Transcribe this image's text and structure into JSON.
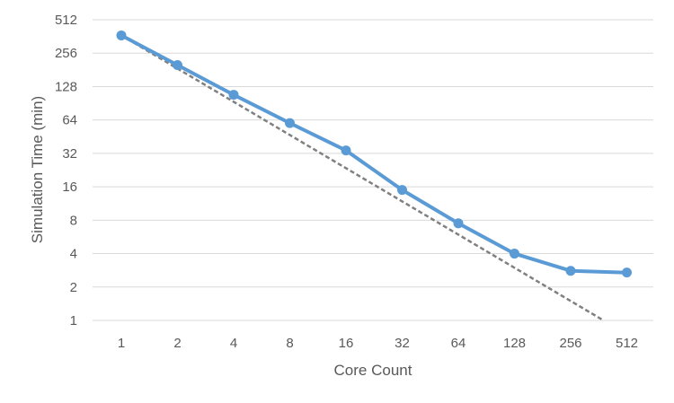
{
  "chart_data": {
    "type": "line",
    "title": "",
    "xlabel": "Core Count",
    "ylabel": "Simulation Time (min)",
    "x_scale": "log2",
    "y_scale": "log2",
    "categories": [
      "1",
      "2",
      "4",
      "8",
      "16",
      "32",
      "64",
      "128",
      "256",
      "512"
    ],
    "y_ticks": [
      "1",
      "2",
      "4",
      "8",
      "16",
      "32",
      "64",
      "128",
      "256",
      "512"
    ],
    "ylim": [
      1,
      512
    ],
    "grid": "horizontal",
    "legend": "none",
    "series": [
      {
        "values": [
          370,
          200,
          108,
          60,
          34,
          15,
          7.5,
          4.0,
          2.8,
          2.7
        ],
        "color": "#5b9bd5",
        "style": "solid",
        "markers": true
      },
      {
        "x": [
          1,
          384
        ],
        "values": [
          370,
          1
        ],
        "color": "#808080",
        "style": "dashed",
        "markers": false
      }
    ]
  }
}
